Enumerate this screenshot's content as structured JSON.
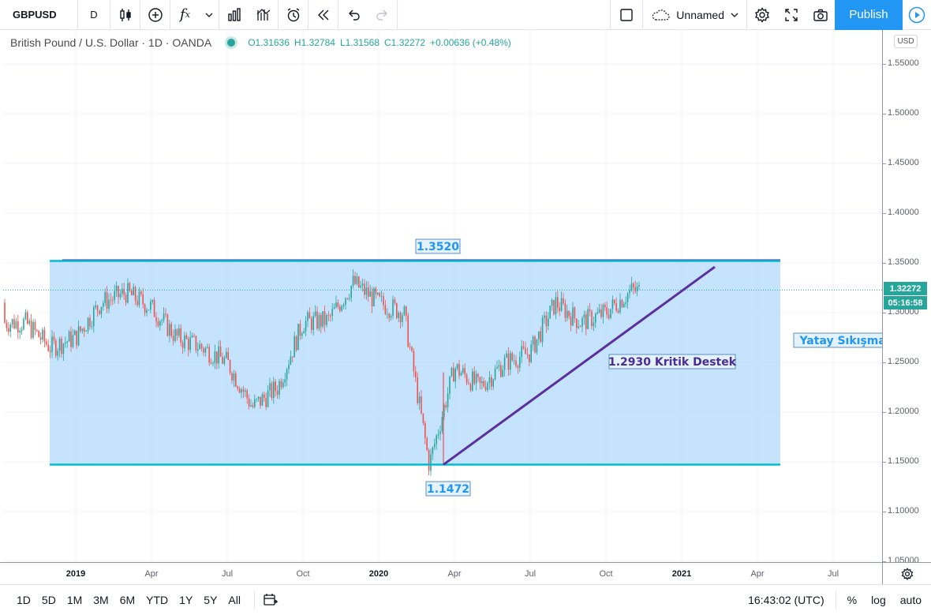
{
  "toolbar": {
    "symbol": "GBPUSD",
    "interval": "D",
    "layout_name": "Unnamed",
    "publish_label": "Publish",
    "icons": [
      "candles-icon",
      "add-compare-icon",
      "indicators-icon",
      "dropdown-icon",
      "bars-style-icon",
      "templates-icon",
      "alert-icon",
      "replay-icon",
      "undo-icon",
      "redo-icon",
      "rectangle-icon",
      "cloud-icon",
      "settings-icon",
      "fullscreen-icon",
      "camera-icon",
      "play-icon"
    ]
  },
  "legend": {
    "title": "British Pound / U.S. Dollar · 1D · OANDA",
    "open": "O1.31636",
    "high": "H1.32784",
    "low": "L1.31568",
    "close": "C1.32272",
    "change": "+0.00636 (+0.48%)"
  },
  "price_axis": {
    "currency": "USD",
    "ticks": [
      "1.55000",
      "1.50000",
      "1.45000",
      "1.40000",
      "1.35000",
      "1.30000",
      "1.25000",
      "1.20000",
      "1.15000",
      "1.10000",
      "1.05000"
    ],
    "last_price": "1.32272",
    "countdown": "05:16:58"
  },
  "time_axis": {
    "ticks": [
      "2019",
      "Apr",
      "Jul",
      "Oct",
      "2020",
      "Apr",
      "Jul",
      "Oct",
      "2021",
      "Apr",
      "Jul"
    ]
  },
  "annotations": {
    "resistance": "1.3520",
    "support": "1.1472",
    "trend_label": "1.2930 Kritik Destek",
    "range_label": "Yatay Sıkışma A"
  },
  "bottom_bar": {
    "ranges": [
      "1D",
      "5D",
      "1M",
      "3M",
      "6M",
      "YTD",
      "1Y",
      "5Y",
      "All"
    ],
    "clock": "16:43:02 (UTC)",
    "percent": "%",
    "log": "log",
    "auto": "auto"
  },
  "chart_data": {
    "type": "candlestick",
    "x_range": [
      "2018-10",
      "2021-08"
    ],
    "ylim": [
      1.05,
      1.55
    ],
    "up_color": "#26a69a",
    "down_color": "#ef5350",
    "close_path": [
      {
        "x": "2018-11",
        "y": 1.29
      },
      {
        "x": "2018-12",
        "y": 1.265
      },
      {
        "x": "2019-01",
        "y": 1.275
      },
      {
        "x": "2019-02",
        "y": 1.31
      },
      {
        "x": "2019-03",
        "y": 1.32
      },
      {
        "x": "2019-04",
        "y": 1.305
      },
      {
        "x": "2019-05",
        "y": 1.275
      },
      {
        "x": "2019-06",
        "y": 1.265
      },
      {
        "x": "2019-07",
        "y": 1.25
      },
      {
        "x": "2019-08",
        "y": 1.205
      },
      {
        "x": "2019-09",
        "y": 1.225
      },
      {
        "x": "2019-10",
        "y": 1.29
      },
      {
        "x": "2019-11",
        "y": 1.292
      },
      {
        "x": "2019-12",
        "y": 1.33
      },
      {
        "x": "2020-01",
        "y": 1.31
      },
      {
        "x": "2020-02",
        "y": 1.3
      },
      {
        "x": "2020-03",
        "y": 1.147
      },
      {
        "x": "2020-04",
        "y": 1.245
      },
      {
        "x": "2020-05",
        "y": 1.225
      },
      {
        "x": "2020-06",
        "y": 1.25
      },
      {
        "x": "2020-07",
        "y": 1.26
      },
      {
        "x": "2020-08",
        "y": 1.31
      },
      {
        "x": "2020-09",
        "y": 1.29
      },
      {
        "x": "2020-10",
        "y": 1.3
      },
      {
        "x": "2020-11",
        "y": 1.322
      }
    ],
    "horizontal_levels": [
      1.352,
      1.1472
    ],
    "trendline": [
      {
        "x": "2020-03",
        "y": 1.1472
      },
      {
        "x": "2020-12",
        "y": 1.346
      }
    ],
    "range_box": {
      "x": [
        "2018-12",
        "2021-04"
      ],
      "y": [
        1.1472,
        1.352
      ],
      "color": "#bbdefb"
    }
  }
}
